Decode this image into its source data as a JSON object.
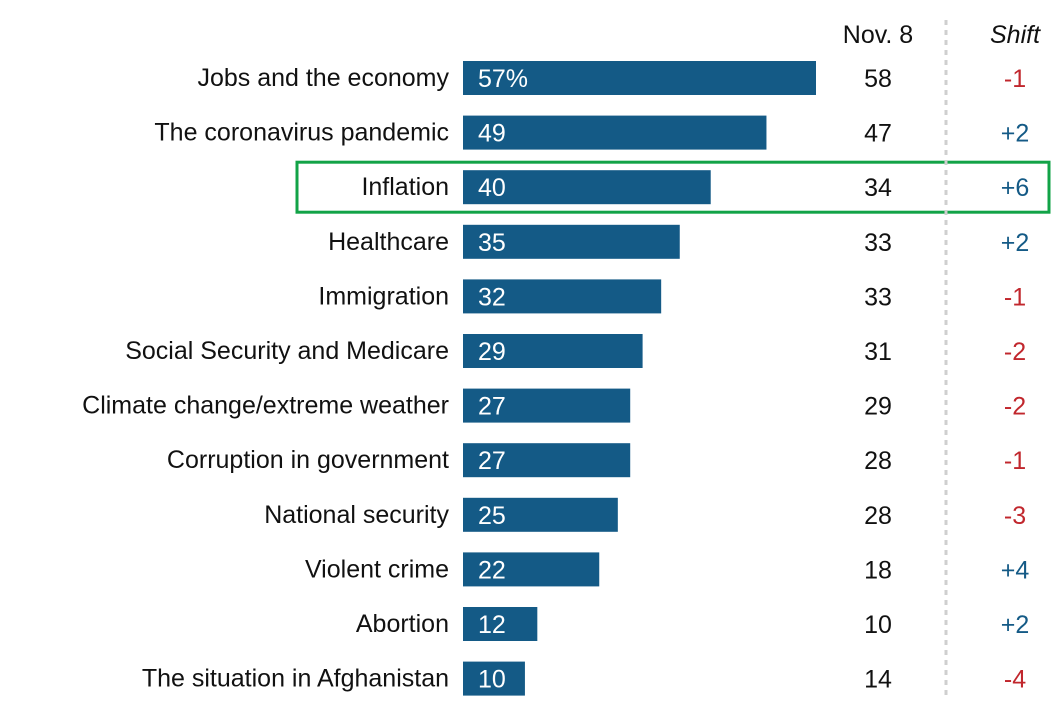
{
  "chart_data": {
    "type": "bar",
    "orientation": "horizontal",
    "categories": [
      "Jobs and the economy",
      "The coronavirus pandemic",
      "Inflation",
      "Healthcare",
      "Immigration",
      "Social Security and Medicare",
      "Climate change/extreme weather",
      "Corruption in government",
      "National security",
      "Violent crime",
      "Abortion",
      "The situation in Afghanistan"
    ],
    "values": [
      57,
      49,
      40,
      35,
      32,
      29,
      27,
      27,
      25,
      22,
      12,
      10
    ],
    "value_labels": [
      "57%",
      "49",
      "40",
      "35",
      "32",
      "29",
      "27",
      "27",
      "25",
      "22",
      "12",
      "10"
    ],
    "xlim": [
      0,
      57
    ],
    "table_columns": {
      "prior_header": "Nov. 8",
      "shift_header": "Shift"
    },
    "prior_values": [
      58,
      47,
      34,
      33,
      33,
      31,
      29,
      28,
      28,
      18,
      10,
      14
    ],
    "shifts": [
      "-1",
      "+2",
      "+6",
      "+2",
      "-1",
      "-2",
      "-2",
      "-1",
      "-3",
      "+4",
      "+2",
      "-4"
    ],
    "highlighted_category": "Inflation",
    "colors": {
      "bar": "#145a86",
      "bar_label": "#ffffff",
      "text": "#111111",
      "positive_shift": "#145a86",
      "negative_shift": "#c1272d",
      "highlight_box": "#12a347",
      "divider": "#cfcfcf"
    }
  }
}
